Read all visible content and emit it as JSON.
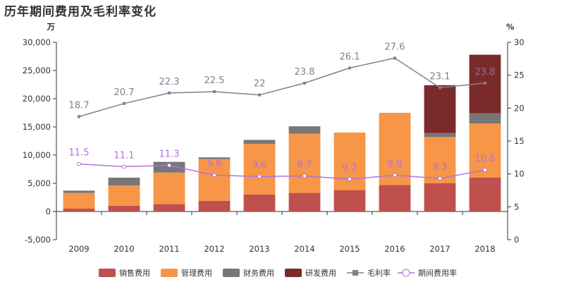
{
  "chart_data": {
    "type": "bar",
    "title": "历年期间费用及毛利率变化",
    "left_unit": "万",
    "right_unit": "%",
    "categories": [
      "2009",
      "2010",
      "2011",
      "2012",
      "2013",
      "2014",
      "2015",
      "2016",
      "2017",
      "2018"
    ],
    "left_ylim": [
      -5000,
      30000
    ],
    "left_ticks": [
      -5000,
      0,
      5000,
      10000,
      15000,
      20000,
      25000,
      30000
    ],
    "right_ylim": [
      0,
      30
    ],
    "right_ticks": [
      0,
      5,
      10,
      15,
      20,
      25,
      30
    ],
    "bar_series": [
      {
        "name": "销售费用",
        "color": "#c0504d",
        "values": [
          500,
          1000,
          1300,
          1900,
          3000,
          3300,
          3800,
          4700,
          5000,
          6000
        ]
      },
      {
        "name": "管理费用",
        "color": "#f79646",
        "values": [
          2800,
          3600,
          5600,
          7400,
          9000,
          10500,
          10200,
          12800,
          8200,
          9600
        ]
      },
      {
        "name": "财务费用",
        "color": "#777777",
        "values": [
          400,
          1400,
          1900,
          300,
          700,
          1300,
          -100,
          0,
          700,
          1800
        ]
      },
      {
        "name": "研发费用",
        "color": "#7b2a2b",
        "values": [
          0,
          0,
          0,
          0,
          0,
          0,
          0,
          0,
          8500,
          10400
        ]
      }
    ],
    "line_series": [
      {
        "name": "毛利率",
        "color": "#8a7a8f",
        "marker": "square",
        "label_dy": -12,
        "values": [
          18.7,
          20.7,
          22.3,
          22.5,
          22,
          23.8,
          26.1,
          27.6,
          23.1,
          23.8
        ]
      },
      {
        "name": "期间费用率",
        "color": "#b36fe0",
        "marker": "circle",
        "label_dy": -12,
        "values": [
          11.5,
          11.1,
          11.3,
          9.8,
          9.6,
          9.7,
          9.2,
          9.8,
          9.3,
          10.6
        ]
      }
    ],
    "grid": false,
    "legend_position": "bottom"
  }
}
